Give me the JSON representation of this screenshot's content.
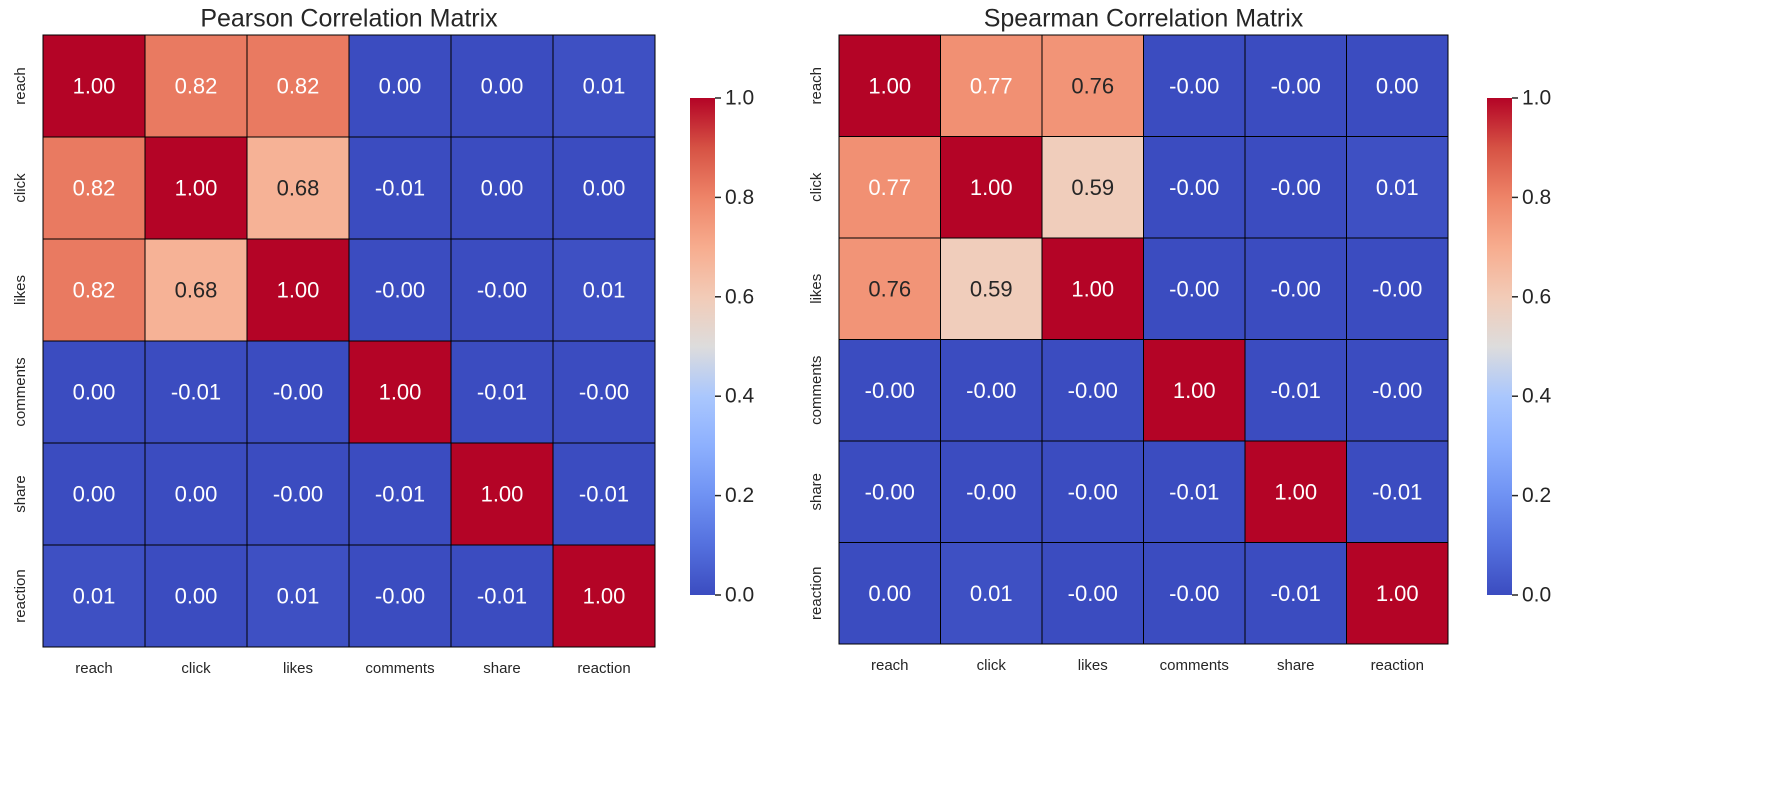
{
  "chart_data": [
    {
      "type": "heatmap",
      "title": "Pearson Correlation Matrix",
      "x_categories": [
        "reach",
        "click",
        "likes",
        "comments",
        "share",
        "reaction"
      ],
      "y_categories": [
        "reach",
        "click",
        "likes",
        "comments",
        "share",
        "reaction"
      ],
      "values": [
        [
          1.0,
          0.82,
          0.82,
          0.0,
          0.0,
          0.01
        ],
        [
          0.82,
          1.0,
          0.68,
          -0.01,
          0.0,
          0.0
        ],
        [
          0.82,
          0.68,
          1.0,
          -0.0,
          -0.0,
          0.01
        ],
        [
          0.0,
          -0.01,
          -0.0,
          1.0,
          -0.01,
          -0.0
        ],
        [
          0.0,
          0.0,
          -0.0,
          -0.01,
          1.0,
          -0.01
        ],
        [
          0.01,
          0.0,
          0.01,
          -0.0,
          -0.01,
          1.0
        ]
      ],
      "value_labels": [
        [
          "1.00",
          "0.82",
          "0.82",
          "0.00",
          "0.00",
          "0.01"
        ],
        [
          "0.82",
          "1.00",
          "0.68",
          "-0.01",
          "0.00",
          "0.00"
        ],
        [
          "0.82",
          "0.68",
          "1.00",
          "-0.00",
          "-0.00",
          "0.01"
        ],
        [
          "0.00",
          "-0.01",
          "-0.00",
          "1.00",
          "-0.01",
          "-0.00"
        ],
        [
          "0.00",
          "0.00",
          "-0.00",
          "-0.01",
          "1.00",
          "-0.01"
        ],
        [
          "0.01",
          "0.00",
          "0.01",
          "-0.00",
          "-0.01",
          "1.00"
        ]
      ],
      "colorscale": "coolwarm",
      "vmin": 0.0,
      "vmax": 1.0,
      "colorbar_ticks": [
        "0.0",
        "0.2",
        "0.4",
        "0.6",
        "0.8",
        "1.0"
      ],
      "grid": true,
      "legend": "colorbar-right"
    },
    {
      "type": "heatmap",
      "title": "Spearman Correlation Matrix",
      "x_categories": [
        "reach",
        "click",
        "likes",
        "comments",
        "share",
        "reaction"
      ],
      "y_categories": [
        "reach",
        "click",
        "likes",
        "comments",
        "share",
        "reaction"
      ],
      "values": [
        [
          1.0,
          0.77,
          0.76,
          -0.0,
          -0.0,
          0.0
        ],
        [
          0.77,
          1.0,
          0.59,
          -0.0,
          -0.0,
          0.01
        ],
        [
          0.76,
          0.59,
          1.0,
          -0.0,
          -0.0,
          -0.0
        ],
        [
          -0.0,
          -0.0,
          -0.0,
          1.0,
          -0.01,
          -0.0
        ],
        [
          -0.0,
          -0.0,
          -0.0,
          -0.01,
          1.0,
          -0.01
        ],
        [
          0.0,
          0.01,
          -0.0,
          -0.0,
          -0.01,
          1.0
        ]
      ],
      "value_labels": [
        [
          "1.00",
          "0.77",
          "0.76",
          "-0.00",
          "-0.00",
          "0.00"
        ],
        [
          "0.77",
          "1.00",
          "0.59",
          "-0.00",
          "-0.00",
          "0.01"
        ],
        [
          "0.76",
          "0.59",
          "1.00",
          "-0.00",
          "-0.00",
          "-0.00"
        ],
        [
          "-0.00",
          "-0.00",
          "-0.00",
          "1.00",
          "-0.01",
          "-0.00"
        ],
        [
          "-0.00",
          "-0.00",
          "-0.00",
          "-0.01",
          "1.00",
          "-0.01"
        ],
        [
          "0.00",
          "0.01",
          "-0.00",
          "-0.00",
          "-0.01",
          "1.00"
        ]
      ],
      "colorscale": "coolwarm",
      "vmin": 0.0,
      "vmax": 1.0,
      "colorbar_ticks": [
        "0.0",
        "0.2",
        "0.4",
        "0.6",
        "0.8",
        "1.0"
      ],
      "grid": true,
      "legend": "colorbar-right"
    }
  ]
}
